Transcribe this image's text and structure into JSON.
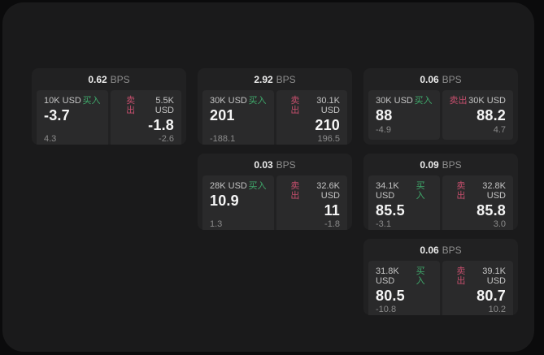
{
  "app": {
    "background": "#0b0b0c",
    "panel_background": "#1a1a1b"
  },
  "labels": {
    "buy": "买入",
    "sell": "卖出",
    "bps_unit": "BPS"
  },
  "colors": {
    "buy_green": "#3fa96b",
    "sell_red": "#c44e6c",
    "card_bg": "#212122",
    "tile_bg": "#2a2a2b",
    "value_white": "#f5f5f5",
    "muted_gray": "#8b8b8b"
  },
  "cards": [
    {
      "bps": "0.62",
      "buy": {
        "amount": "10K USD",
        "price": "-3.7",
        "delta": "4.3"
      },
      "sell": {
        "amount": "5.5K USD",
        "price": "-1.8",
        "delta": "-2.6"
      }
    },
    {
      "bps": "2.92",
      "buy": {
        "amount": "30K USD",
        "price": "201",
        "delta": "-188.1"
      },
      "sell": {
        "amount": "30.1K USD",
        "price": "210",
        "delta": "196.5"
      }
    },
    {
      "bps": "0.06",
      "buy": {
        "amount": "30K USD",
        "price": "88",
        "delta": "-4.9"
      },
      "sell": {
        "amount": "30K USD",
        "price": "88.2",
        "delta": "4.7"
      }
    },
    {
      "bps": "0.03",
      "buy": {
        "amount": "28K USD",
        "price": "10.9",
        "delta": "1.3"
      },
      "sell": {
        "amount": "32.6K USD",
        "price": "11",
        "delta": "-1.8"
      }
    },
    {
      "bps": "0.09",
      "buy": {
        "amount": "34.1K USD",
        "price": "85.5",
        "delta": "-3.1"
      },
      "sell": {
        "amount": "32.8K USD",
        "price": "85.8",
        "delta": "3.0"
      }
    },
    {
      "bps": "0.06",
      "buy": {
        "amount": "31.8K USD",
        "price": "80.5",
        "delta": "-10.8"
      },
      "sell": {
        "amount": "39.1K USD",
        "price": "80.7",
        "delta": "10.2"
      }
    }
  ]
}
